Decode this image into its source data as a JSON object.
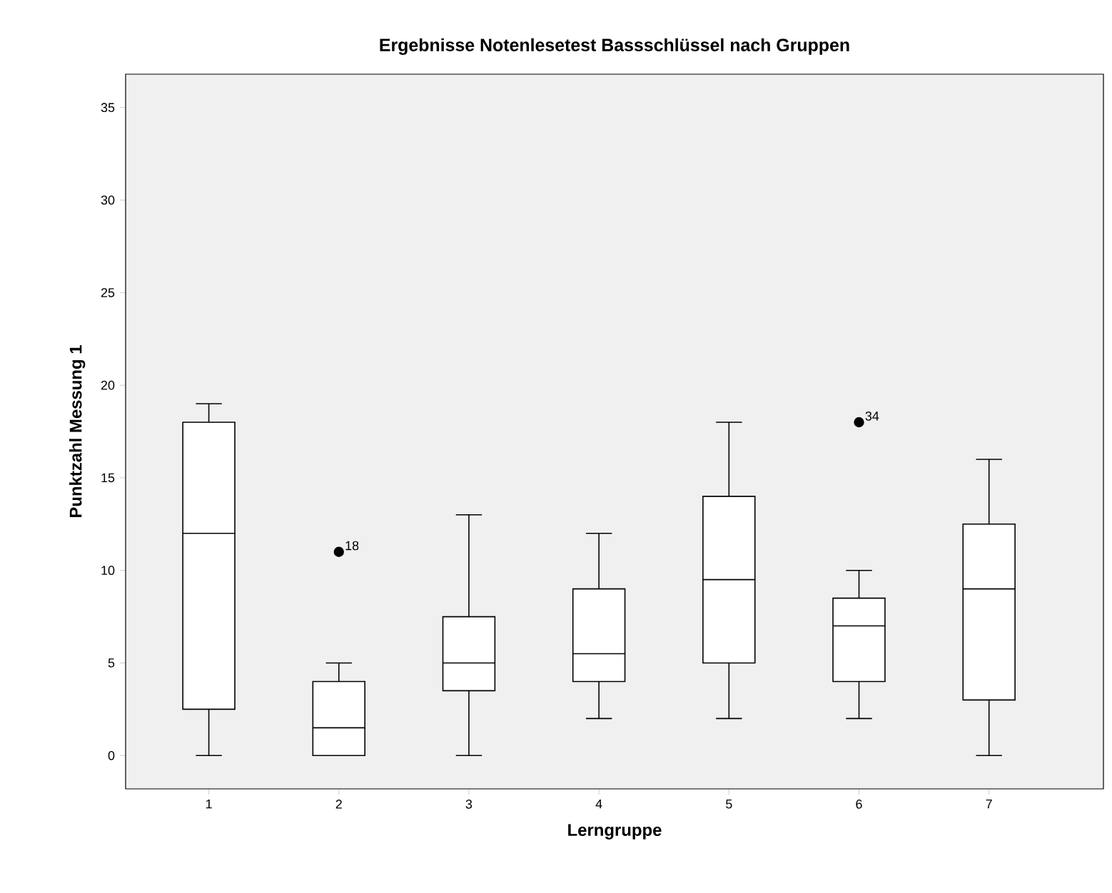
{
  "chart_data": {
    "type": "box",
    "title": "Ergebnisse Notenlesetest Bassschlüssel nach Gruppen",
    "xlabel": "Lerngruppe",
    "ylabel": "Punktzahl Messung 1",
    "categories": [
      "1",
      "2",
      "3",
      "4",
      "5",
      "6",
      "7"
    ],
    "boxes": [
      {
        "low": 0,
        "q1": 2.5,
        "median": 12,
        "q3": 18,
        "high": 19
      },
      {
        "low": 0,
        "q1": 0,
        "median": 1.5,
        "q3": 4,
        "high": 5,
        "outliers": [
          11
        ]
      },
      {
        "low": 0,
        "q1": 3.5,
        "median": 5,
        "q3": 7.5,
        "high": 13
      },
      {
        "low": 2,
        "q1": 4,
        "median": 5.5,
        "q3": 9,
        "high": 12
      },
      {
        "low": 2,
        "q1": 5,
        "median": 9.5,
        "q3": 14,
        "high": 18
      },
      {
        "low": 2,
        "q1": 4,
        "median": 7,
        "q3": 8.5,
        "high": 10,
        "outliers": [
          18
        ]
      },
      {
        "low": 0,
        "q1": 3,
        "median": 9,
        "q3": 12.5,
        "high": 16
      }
    ],
    "ylim": [
      -1.8,
      36.8
    ],
    "yticks": [
      0,
      5,
      10,
      15,
      20,
      25,
      30,
      35
    ],
    "annotations": [
      "18",
      "34"
    ]
  }
}
